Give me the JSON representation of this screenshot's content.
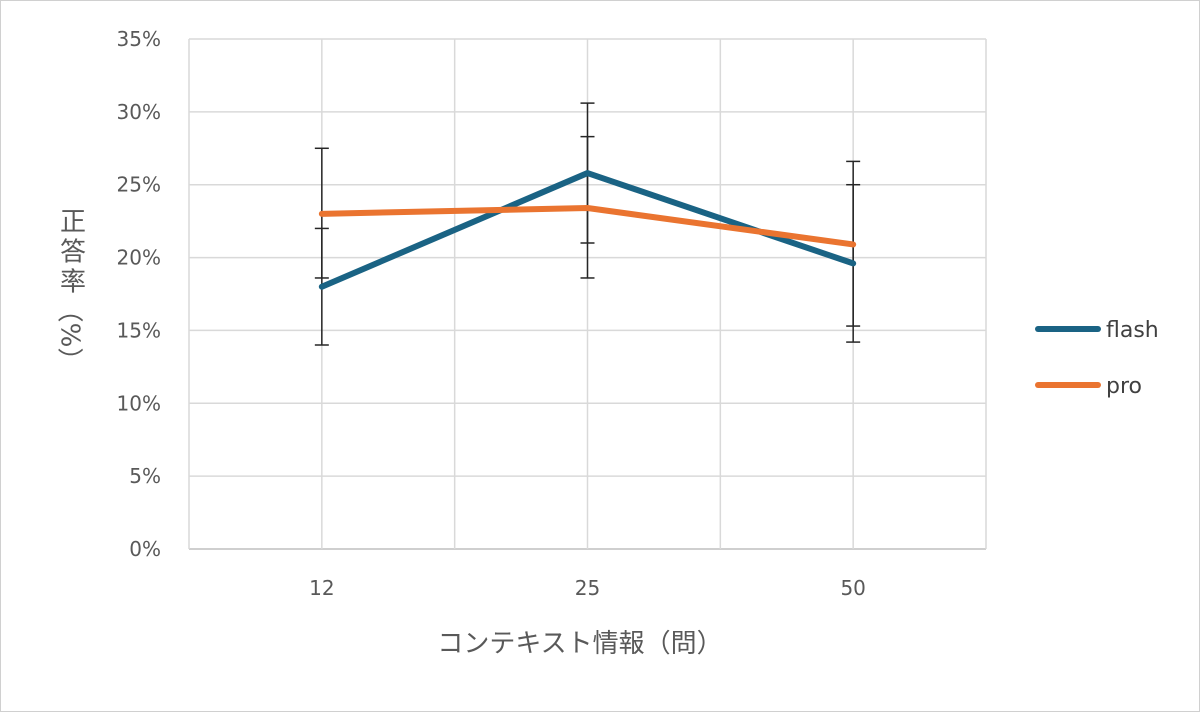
{
  "chart_data": {
    "type": "line",
    "categories": [
      "12",
      "25",
      "50"
    ],
    "ylim": [
      0,
      35
    ],
    "y_ticks": [
      "0%",
      "5%",
      "10%",
      "15%",
      "20%",
      "25%",
      "30%",
      "35%"
    ],
    "y_tick_values": [
      0,
      5,
      10,
      15,
      20,
      25,
      30,
      35
    ],
    "xlabel": "コンテキスト情報（問）",
    "ylabel": "正答率（%）",
    "grid": true,
    "legend_position": "right",
    "series": [
      {
        "name": "flash",
        "color": "#1a6384",
        "values": [
          18.0,
          25.8,
          19.6
        ],
        "error_low": [
          14.0,
          21.0,
          14.2
        ],
        "error_high": [
          22.0,
          30.6,
          25.0
        ]
      },
      {
        "name": "pro",
        "color": "#ea7430",
        "values": [
          23.0,
          23.4,
          20.9
        ],
        "error_low": [
          18.6,
          18.6,
          15.3
        ],
        "error_high": [
          27.5,
          28.3,
          26.6
        ]
      }
    ]
  }
}
